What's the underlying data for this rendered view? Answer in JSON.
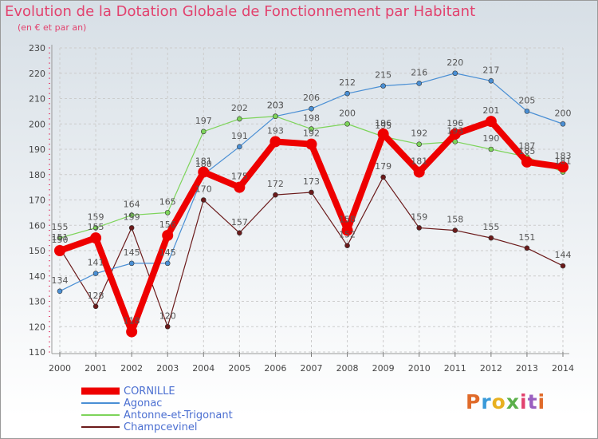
{
  "header": {
    "title": "Evolution de la Dotation Globale de Fonctionnement par Habitant",
    "subtitle": "(en € et par an)"
  },
  "logo": {
    "text": "Proxiti",
    "colors": [
      "#e06a2a",
      "#3a9ad9",
      "#e8b020",
      "#5bb04a",
      "#e2426e",
      "#9a5fc0",
      "#e06a2a"
    ]
  },
  "chart_data": {
    "type": "line",
    "title": "Evolution de la Dotation Globale de Fonctionnement par Habitant",
    "subtitle": "(en € et par an)",
    "x": [
      "2000",
      "2001",
      "2002",
      "2003",
      "2004",
      "2005",
      "2006",
      "2007",
      "2008",
      "2009",
      "2010",
      "2011",
      "2012",
      "2013",
      "2014"
    ],
    "ylim": [
      110,
      230
    ],
    "yticks": [
      110,
      120,
      130,
      140,
      150,
      160,
      170,
      180,
      190,
      200,
      210,
      220,
      230
    ],
    "grid": true,
    "legend_position": "bottom-left",
    "series": [
      {
        "name": "CORNILLE",
        "color": "#ee0000",
        "values": [
          150,
          155,
          118,
          156,
          181,
          175,
          193,
          192,
          158,
          196,
          181,
          196,
          201,
          185,
          183
        ]
      },
      {
        "name": "Agonac",
        "color": "#4a8fd4",
        "values": [
          134,
          141,
          145,
          145,
          180,
          191,
          203,
          206,
          212,
          215,
          216,
          220,
          217,
          205,
          200
        ]
      },
      {
        "name": "Antonne-et-Trigonant",
        "color": "#7dd45a",
        "values": [
          155,
          159,
          164,
          165,
          197,
          202,
          203,
          198,
          200,
          195,
          192,
          193,
          190,
          187,
          181
        ]
      },
      {
        "name": "Champcevinel",
        "color": "#6b1a1a",
        "values": [
          151,
          128,
          159,
          120,
          170,
          157,
          172,
          173,
          152,
          179,
          159,
          158,
          155,
          151,
          144
        ]
      }
    ]
  }
}
